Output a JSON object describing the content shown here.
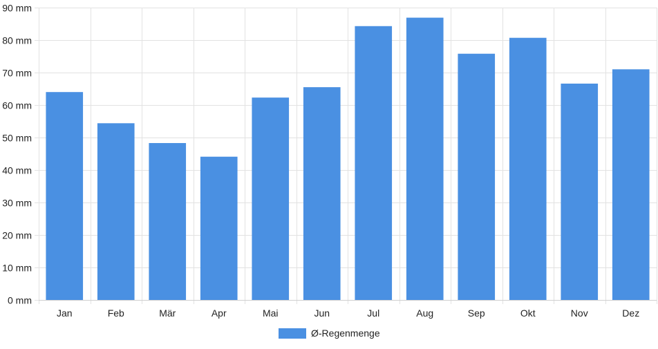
{
  "chart_data": {
    "type": "bar",
    "title": "",
    "xlabel": "",
    "ylabel": "",
    "categories": [
      "Jan",
      "Feb",
      "Mär",
      "Apr",
      "Mai",
      "Jun",
      "Jul",
      "Aug",
      "Sep",
      "Okt",
      "Nov",
      "Dez"
    ],
    "series": [
      {
        "name": "Ø-Regenmenge",
        "values": [
          64,
          54.4,
          48.3,
          44.1,
          62.3,
          65.5,
          84.3,
          86.9,
          75.8,
          80.7,
          66.6,
          71
        ],
        "color": "#4a90e2"
      }
    ],
    "ylim": [
      0,
      90
    ],
    "y_ticks": [
      "0 mm",
      "10 mm",
      "20 mm",
      "30 mm",
      "40 mm",
      "50 mm",
      "60 mm",
      "70 mm",
      "80 mm",
      "90 mm"
    ],
    "grid": true,
    "legend_position": "bottom"
  }
}
